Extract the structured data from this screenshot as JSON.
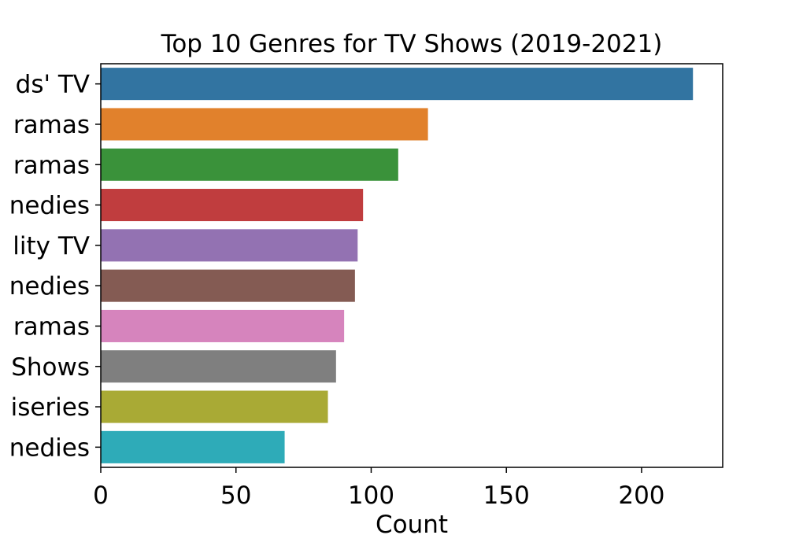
{
  "chart_data": {
    "type": "bar",
    "orientation": "horizontal",
    "title": "Top 10 Genres for TV Shows (2019-2021)",
    "xlabel": "Count",
    "ylabel": "",
    "xlim": [
      0,
      230
    ],
    "xticks": [
      0,
      50,
      100,
      150,
      200
    ],
    "grid": false,
    "categories": [
      "ds' TV",
      "ramas",
      "ramas",
      "nedies",
      "lity TV",
      "nedies",
      "ramas",
      "Shows",
      "iseries",
      "nedies"
    ],
    "values": [
      219,
      121,
      110,
      97,
      95,
      94,
      90,
      87,
      84,
      68
    ],
    "colors": [
      "#3274a1",
      "#e1812c",
      "#3a923a",
      "#c03d3e",
      "#9372b2",
      "#845b53",
      "#d684bd",
      "#7f7f7f",
      "#a9aa35",
      "#2eabb8"
    ]
  }
}
